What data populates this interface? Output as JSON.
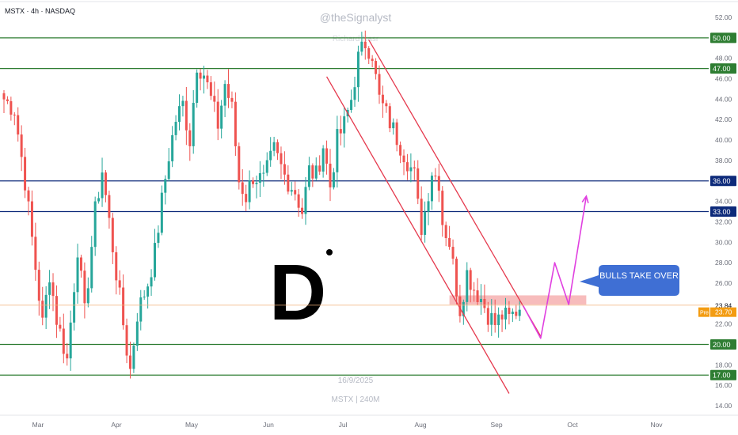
{
  "header": {
    "symbol_line": "MSTX · 4h · NASDAQ",
    "watermark_author": "@theSignalyst",
    "watermark_author_faint": "Richard Nasr",
    "date_watermark": "16/9/2025",
    "ticker_watermark": "MSTX | 240M"
  },
  "logo": {
    "letter": "D"
  },
  "annotation": {
    "label": "BULLS TAKE OVER"
  },
  "chart_data": {
    "type": "candlestick",
    "title": "MSTX · 4h · NASDAQ",
    "xlabel": "",
    "ylabel": "",
    "ylim": [
      13.2,
      53.5
    ],
    "x_tick_labels": [
      "Mar",
      "Apr",
      "May",
      "Jun",
      "Jul",
      "Aug",
      "Sep",
      "Oct",
      "Nov"
    ],
    "y_tick_values": [
      14.0,
      16.0,
      18.0,
      20.0,
      22.0,
      24.0,
      26.0,
      28.0,
      30.0,
      32.0,
      34.0,
      36.0,
      38.0,
      40.0,
      42.0,
      44.0,
      46.0,
      48.0,
      50.0,
      52.0
    ],
    "y_tick_labels": [
      "14.00",
      "16.00",
      "18.00",
      "20.00",
      "22.00",
      "24.00",
      "26.00",
      "28.00",
      "30.00",
      "32.00",
      "34.00",
      "36.00",
      "38.00",
      "40.00",
      "42.00",
      "44.00",
      "46.00",
      "48.00",
      "50.00",
      "52.00"
    ],
    "grid": false,
    "horizontal_levels": [
      {
        "value": 50.0,
        "label": "50.00",
        "color": "#2e7d32"
      },
      {
        "value": 47.0,
        "label": "47.00",
        "color": "#2e7d32"
      },
      {
        "value": 36.0,
        "label": "36.00",
        "color": "#0d2a7a"
      },
      {
        "value": 33.0,
        "label": "33.00",
        "color": "#0d2a7a"
      },
      {
        "value": 20.0,
        "label": "20.00",
        "color": "#2e7d32"
      },
      {
        "value": 17.0,
        "label": "17.00",
        "color": "#2e7d32"
      }
    ],
    "price_tags": [
      {
        "value": 23.84,
        "label": "23.84",
        "kind": "last"
      },
      {
        "value": 23.7,
        "label": "23.70",
        "kind": "pre",
        "prefix": "Pre"
      }
    ],
    "anchors": [
      {
        "x": 0,
        "y": 44.0
      },
      {
        "x": 3,
        "y": 43.0
      },
      {
        "x": 6,
        "y": 36.0
      },
      {
        "x": 9,
        "y": 27.5
      },
      {
        "x": 11,
        "y": 22.0
      },
      {
        "x": 13,
        "y": 27.0
      },
      {
        "x": 15,
        "y": 22.5
      },
      {
        "x": 18,
        "y": 18.5
      },
      {
        "x": 21,
        "y": 29.5
      },
      {
        "x": 23,
        "y": 23.0
      },
      {
        "x": 26,
        "y": 33.0
      },
      {
        "x": 28,
        "y": 37.0
      },
      {
        "x": 31,
        "y": 29.5
      },
      {
        "x": 33,
        "y": 24.5
      },
      {
        "x": 35,
        "y": 19.5
      },
      {
        "x": 36,
        "y": 17.5
      },
      {
        "x": 38,
        "y": 23.0
      },
      {
        "x": 41,
        "y": 26.0
      },
      {
        "x": 43,
        "y": 29.0
      },
      {
        "x": 45,
        "y": 34.0
      },
      {
        "x": 47,
        "y": 38.5
      },
      {
        "x": 49,
        "y": 42.0
      },
      {
        "x": 51,
        "y": 43.5
      },
      {
        "x": 53,
        "y": 40.0
      },
      {
        "x": 55,
        "y": 47.5
      },
      {
        "x": 57,
        "y": 46.5
      },
      {
        "x": 59,
        "y": 44.0
      },
      {
        "x": 61,
        "y": 41.5
      },
      {
        "x": 63,
        "y": 45.5
      },
      {
        "x": 65,
        "y": 43.0
      },
      {
        "x": 67,
        "y": 36.0
      },
      {
        "x": 69,
        "y": 34.5
      },
      {
        "x": 71,
        "y": 36.5
      },
      {
        "x": 74,
        "y": 36.0
      },
      {
        "x": 77,
        "y": 39.0
      },
      {
        "x": 80,
        "y": 36.5
      },
      {
        "x": 83,
        "y": 35.0
      },
      {
        "x": 85,
        "y": 33.0
      },
      {
        "x": 87,
        "y": 37.0
      },
      {
        "x": 89,
        "y": 36.5
      },
      {
        "x": 91,
        "y": 39.5
      },
      {
        "x": 93,
        "y": 35.5
      },
      {
        "x": 95,
        "y": 40.0
      },
      {
        "x": 97,
        "y": 41.5
      },
      {
        "x": 99,
        "y": 44.0
      },
      {
        "x": 101,
        "y": 48.0
      },
      {
        "x": 103,
        "y": 49.5
      },
      {
        "x": 105,
        "y": 48.5
      },
      {
        "x": 106,
        "y": 46.0
      },
      {
        "x": 107,
        "y": 44.0
      },
      {
        "x": 109,
        "y": 42.5
      },
      {
        "x": 111,
        "y": 41.0
      },
      {
        "x": 113,
        "y": 39.5
      },
      {
        "x": 115,
        "y": 38.0
      },
      {
        "x": 117,
        "y": 36.5
      },
      {
        "x": 118,
        "y": 33.5
      },
      {
        "x": 119,
        "y": 31.5
      },
      {
        "x": 120,
        "y": 33.0
      },
      {
        "x": 122,
        "y": 37.0
      },
      {
        "x": 124,
        "y": 36.0
      },
      {
        "x": 125,
        "y": 32.0
      },
      {
        "x": 127,
        "y": 30.0
      },
      {
        "x": 129,
        "y": 25.5
      },
      {
        "x": 130,
        "y": 23.5
      },
      {
        "x": 132,
        "y": 27.0
      },
      {
        "x": 134,
        "y": 25.5
      },
      {
        "x": 136,
        "y": 24.5
      },
      {
        "x": 138,
        "y": 23.0
      },
      {
        "x": 140,
        "y": 22.0
      },
      {
        "x": 142,
        "y": 22.8
      },
      {
        "x": 144,
        "y": 22.5
      },
      {
        "x": 147,
        "y": 23.7
      }
    ],
    "channel": {
      "upper": {
        "from": {
          "x": 104,
          "y": 49.8
        },
        "to": {
          "x": 153,
          "y": 20.8
        }
      },
      "lower": {
        "from": {
          "x": 92,
          "y": 46.2
        },
        "to": {
          "x": 144,
          "y": 15.2
        }
      }
    },
    "resistance_zone": {
      "x_from": 127,
      "x_to": 166,
      "y_low": 23.9,
      "y_high": 24.8
    },
    "projected_path": [
      {
        "x": 148,
        "y": 23.8
      },
      {
        "x": 153,
        "y": 20.6
      },
      {
        "x": 157,
        "y": 28.0
      },
      {
        "x": 161,
        "y": 23.9
      },
      {
        "x": 166,
        "y": 34.5
      }
    ]
  }
}
